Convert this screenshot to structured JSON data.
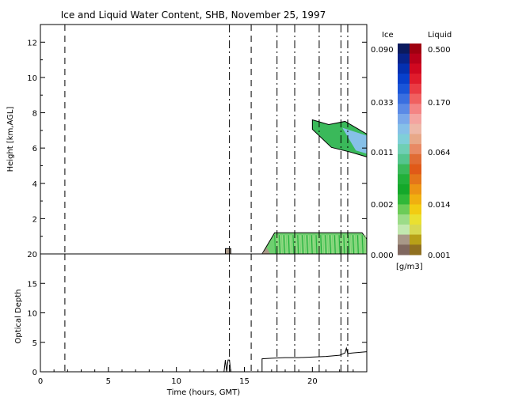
{
  "chart_data": [
    {
      "type": "heatmap",
      "title": "Ice and Liquid Water Content, SHB, November 25, 1997",
      "ylabel": "Height [km,AGL]",
      "xlim": [
        0,
        24
      ],
      "ylim": [
        0,
        13
      ],
      "yticks": [
        2,
        4,
        6,
        8,
        10,
        12
      ],
      "event_lines_hours": [
        1.8,
        13.9,
        15.5,
        17.4,
        18.7,
        20.5,
        22.1,
        22.6
      ],
      "regions": [
        {
          "phase": "ice",
          "hours": [
            20.0,
            24.0
          ],
          "height_km": [
            5.5,
            7.6
          ],
          "value_range": [
            0.002,
            0.033
          ]
        },
        {
          "phase": "liquid",
          "hours": [
            16.3,
            24.0
          ],
          "height_km": [
            0.0,
            1.2
          ],
          "value_range": [
            0.002,
            0.014
          ]
        },
        {
          "phase": "ice",
          "hours": [
            13.6,
            14.0
          ],
          "height_km": [
            0.0,
            0.3
          ],
          "value_range": [
            0.0,
            0.002
          ]
        }
      ]
    },
    {
      "type": "line",
      "ylabel": "Optical Depth",
      "xlabel": "Time (hours, GMT)",
      "xlim": [
        0,
        24
      ],
      "ylim": [
        0,
        20
      ],
      "xticks": [
        0,
        5,
        10,
        15,
        20
      ],
      "yticks": [
        0,
        5,
        10,
        15,
        20
      ],
      "x": [
        13.5,
        13.6,
        13.7,
        13.8,
        13.9,
        14.0,
        16.3,
        17.0,
        18.0,
        19.0,
        20.0,
        21.0,
        22.0,
        22.4,
        22.5,
        22.6,
        23.0,
        23.5,
        24.0
      ],
      "y": [
        0.0,
        2.0,
        0.0,
        2.0,
        2.0,
        0.0,
        2.2,
        2.3,
        2.4,
        2.4,
        2.5,
        2.6,
        2.8,
        3.2,
        4.0,
        3.1,
        3.2,
        3.3,
        3.4
      ]
    }
  ],
  "colorbar": {
    "ice_label": "Ice",
    "liquid_label": "Liquid",
    "unit": "[g/m3]",
    "ice_ticks": [
      "0.090",
      "0.033",
      "0.011",
      "0.002",
      "0.000"
    ],
    "liquid_ticks": [
      "0.500",
      "0.170",
      "0.064",
      "0.014",
      "0.001"
    ],
    "ice_colors": [
      "#0b1a5e",
      "#08238a",
      "#0430b0",
      "#0840cc",
      "#1a55d8",
      "#3a6fe0",
      "#5b8ae6",
      "#7aa8ea",
      "#86c0e8",
      "#7fcfd8",
      "#6fcfb4",
      "#55c58e",
      "#3ab95a",
      "#22b03a",
      "#14a82a",
      "#30b838",
      "#6ccc58",
      "#9cdc88",
      "#c2e8b0",
      "#a89888",
      "#806860"
    ],
    "liquid_colors": [
      "#9e0010",
      "#b8001a",
      "#d00820",
      "#e01c2c",
      "#ea3c44",
      "#f06060",
      "#f48484",
      "#f4a4a0",
      "#eeb8a8",
      "#e8a888",
      "#e88a64",
      "#e06c34",
      "#e05a18",
      "#e4761a",
      "#ec9414",
      "#f0b010",
      "#f2cc12",
      "#eae030",
      "#d8d850",
      "#b8a018",
      "#907020"
    ]
  }
}
